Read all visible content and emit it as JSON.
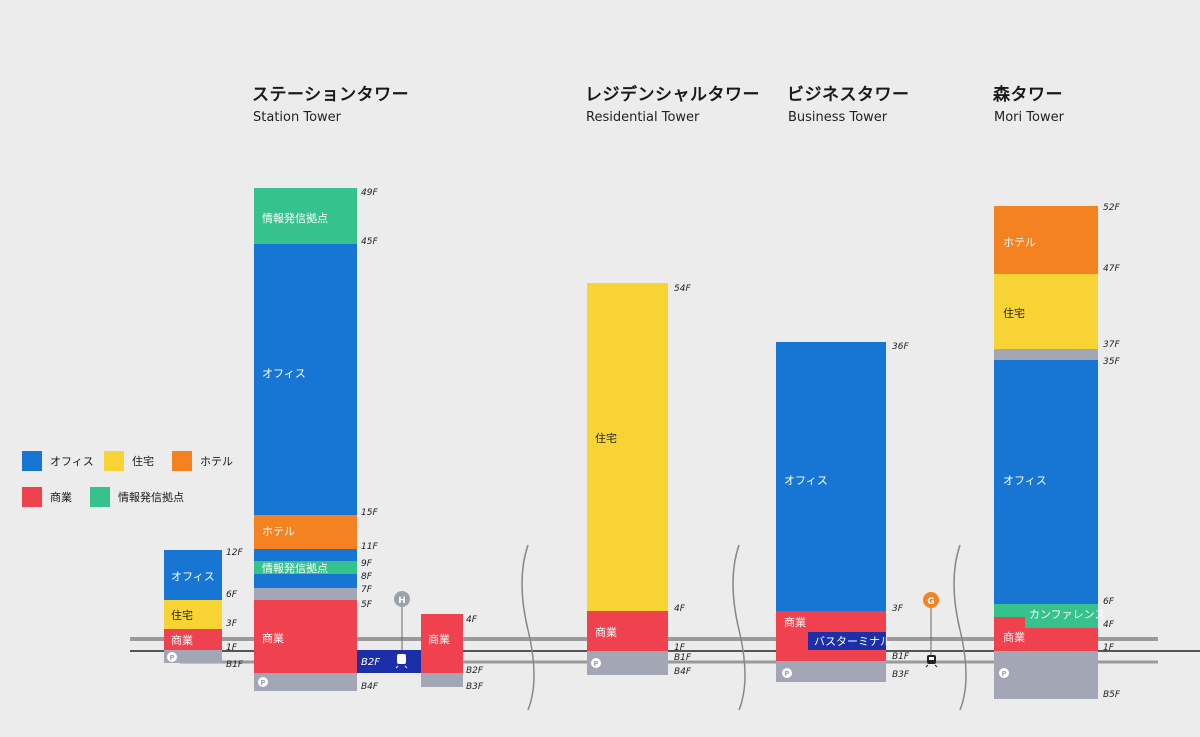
{
  "colors": {
    "office": "#1776d3",
    "residential": "#f7d433",
    "hotel": "#f58220",
    "commercial": "#f0414e",
    "info": "#35c28d",
    "parking": "#a3a6b4",
    "bus": "#1c2fa8",
    "ground": "#9a9a9a"
  },
  "titles": [
    {
      "jp": "ステーションタワー",
      "en": "Station Tower"
    },
    {
      "jp": "レジデンシャルタワー",
      "en": "Residential Tower"
    },
    {
      "jp": "ビジネスタワー",
      "en": "Business Tower"
    },
    {
      "jp": "森タワー",
      "en": "Mori Tower"
    }
  ],
  "legend": [
    {
      "label": "オフィス",
      "use": "office"
    },
    {
      "label": "住宅",
      "use": "residential"
    },
    {
      "label": "ホテル",
      "use": "hotel"
    },
    {
      "label": "商業",
      "use": "commercial"
    },
    {
      "label": "情報発信拠点",
      "use": "info"
    }
  ],
  "segments": {
    "small_office": "オフィス",
    "small_res": "住宅",
    "small_comm": "商業",
    "st_info_top": "情報発信拠点",
    "st_office": "オフィス",
    "st_hotel": "ホテル",
    "st_info_mid": "情報発信拠点",
    "st_comm": "商業",
    "st_annex_comm": "商業",
    "res_res": "住宅",
    "res_comm": "商業",
    "biz_office": "オフィス",
    "biz_comm": "商業",
    "biz_bus": "バスターミナル",
    "mori_hotel": "ホテル",
    "mori_res": "住宅",
    "mori_office": "オフィス",
    "mori_conf": "カンファレンス",
    "mori_comm": "商業"
  },
  "floors": {
    "small": [
      "12F",
      "6F",
      "3F",
      "1F",
      "B1F"
    ],
    "station": [
      "49F",
      "45F",
      "15F",
      "11F",
      "9F",
      "8F",
      "7F",
      "5F",
      "B4F"
    ],
    "station_bus": "B2F",
    "annex": [
      "4F",
      "B2F",
      "B3F"
    ],
    "residential": [
      "54F",
      "4F",
      "1F",
      "B1F",
      "B4F"
    ],
    "business": [
      "36F",
      "3F",
      "B1F",
      "B3F"
    ],
    "mori": [
      "52F",
      "47F",
      "37F",
      "35F",
      "6F",
      "4F",
      "1F",
      "B5F"
    ]
  },
  "markers": {
    "h": "H",
    "g": "G",
    "p": "P"
  }
}
